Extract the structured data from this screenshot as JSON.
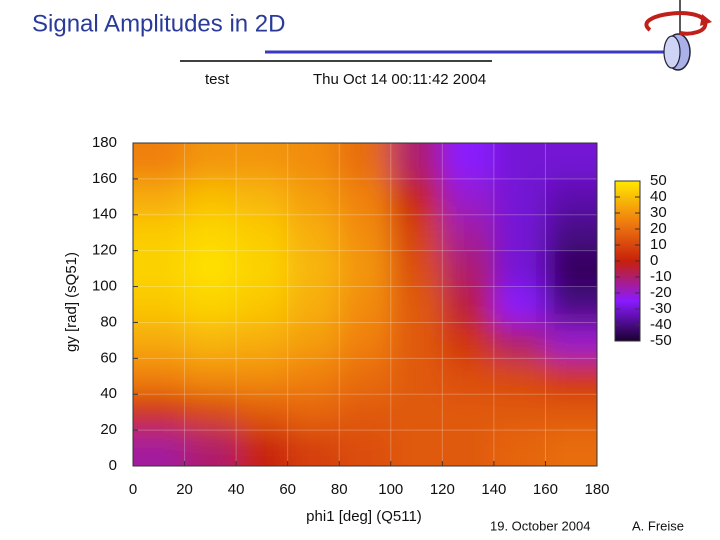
{
  "slide": {
    "title": "Signal Amplitudes in 2D",
    "date": "19. October 2004",
    "author": "A. Freise"
  },
  "chart_data": {
    "type": "heatmap",
    "title": "test",
    "subtitle": "Thu Oct 14 00:11:42 2004",
    "x_label": "phi1 [deg] (Q511)",
    "y_label": "gy [rad] (sQ51)",
    "xlim": [
      0,
      180
    ],
    "ylim": [
      0,
      180
    ],
    "xticks": [
      0,
      20,
      40,
      60,
      80,
      100,
      120,
      140,
      160,
      180
    ],
    "yticks": [
      0,
      20,
      40,
      60,
      80,
      100,
      120,
      140,
      160,
      180
    ],
    "zlim": [
      -50,
      50
    ],
    "zticks": [
      50,
      40,
      30,
      20,
      10,
      0,
      -10,
      -20,
      -30,
      -40,
      -50
    ],
    "colormap": [
      "#1a0030",
      "#8a1aff",
      "#c8200c",
      "#f08010",
      "#ffe800"
    ],
    "grid": true,
    "x": [
      10,
      30,
      50,
      70,
      90,
      110,
      130,
      150,
      170
    ],
    "y": [
      10,
      30,
      50,
      70,
      90,
      110,
      130,
      150,
      170
    ],
    "values": [
      [
        -15,
        -10,
        0,
        8,
        12,
        15,
        15,
        18,
        20
      ],
      [
        5,
        10,
        15,
        18,
        15,
        15,
        15,
        15,
        15
      ],
      [
        25,
        28,
        28,
        25,
        20,
        15,
        12,
        10,
        5
      ],
      [
        35,
        38,
        36,
        32,
        25,
        15,
        5,
        -10,
        -20
      ],
      [
        42,
        45,
        42,
        36,
        28,
        15,
        -5,
        -25,
        -40
      ],
      [
        45,
        48,
        45,
        38,
        30,
        12,
        -10,
        -30,
        -45
      ],
      [
        43,
        46,
        43,
        36,
        28,
        8,
        -15,
        -30,
        -40
      ],
      [
        35,
        40,
        38,
        32,
        25,
        0,
        -20,
        -30,
        -35
      ],
      [
        25,
        30,
        30,
        28,
        20,
        -10,
        -25,
        -30,
        -30
      ]
    ]
  }
}
